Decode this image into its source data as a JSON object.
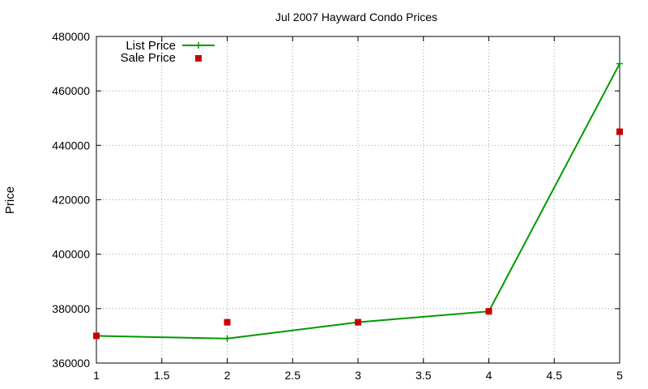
{
  "chart_data": {
    "type": "line",
    "title": "Jul 2007 Hayward Condo Prices",
    "xlabel": "",
    "ylabel": "Price",
    "xlim": [
      1,
      5
    ],
    "ylim": [
      360000,
      480000
    ],
    "xticks": [
      "1",
      "1.5",
      "2",
      "2.5",
      "3",
      "3.5",
      "4",
      "4.5",
      "5"
    ],
    "yticks": [
      "360000",
      "380000",
      "400000",
      "420000",
      "440000",
      "460000",
      "480000"
    ],
    "grid": true,
    "legend_position": "top-left",
    "series": [
      {
        "name": "List Price",
        "style": "line+cross",
        "color": "#009900",
        "x": [
          1,
          2,
          3,
          4,
          5
        ],
        "values": [
          370000,
          369000,
          375000,
          379000,
          470000
        ]
      },
      {
        "name": "Sale Price",
        "style": "square-points",
        "color": "#cc0000",
        "x": [
          1,
          2,
          3,
          4,
          5
        ],
        "values": [
          370000,
          375000,
          375000,
          379000,
          445000
        ]
      }
    ]
  }
}
